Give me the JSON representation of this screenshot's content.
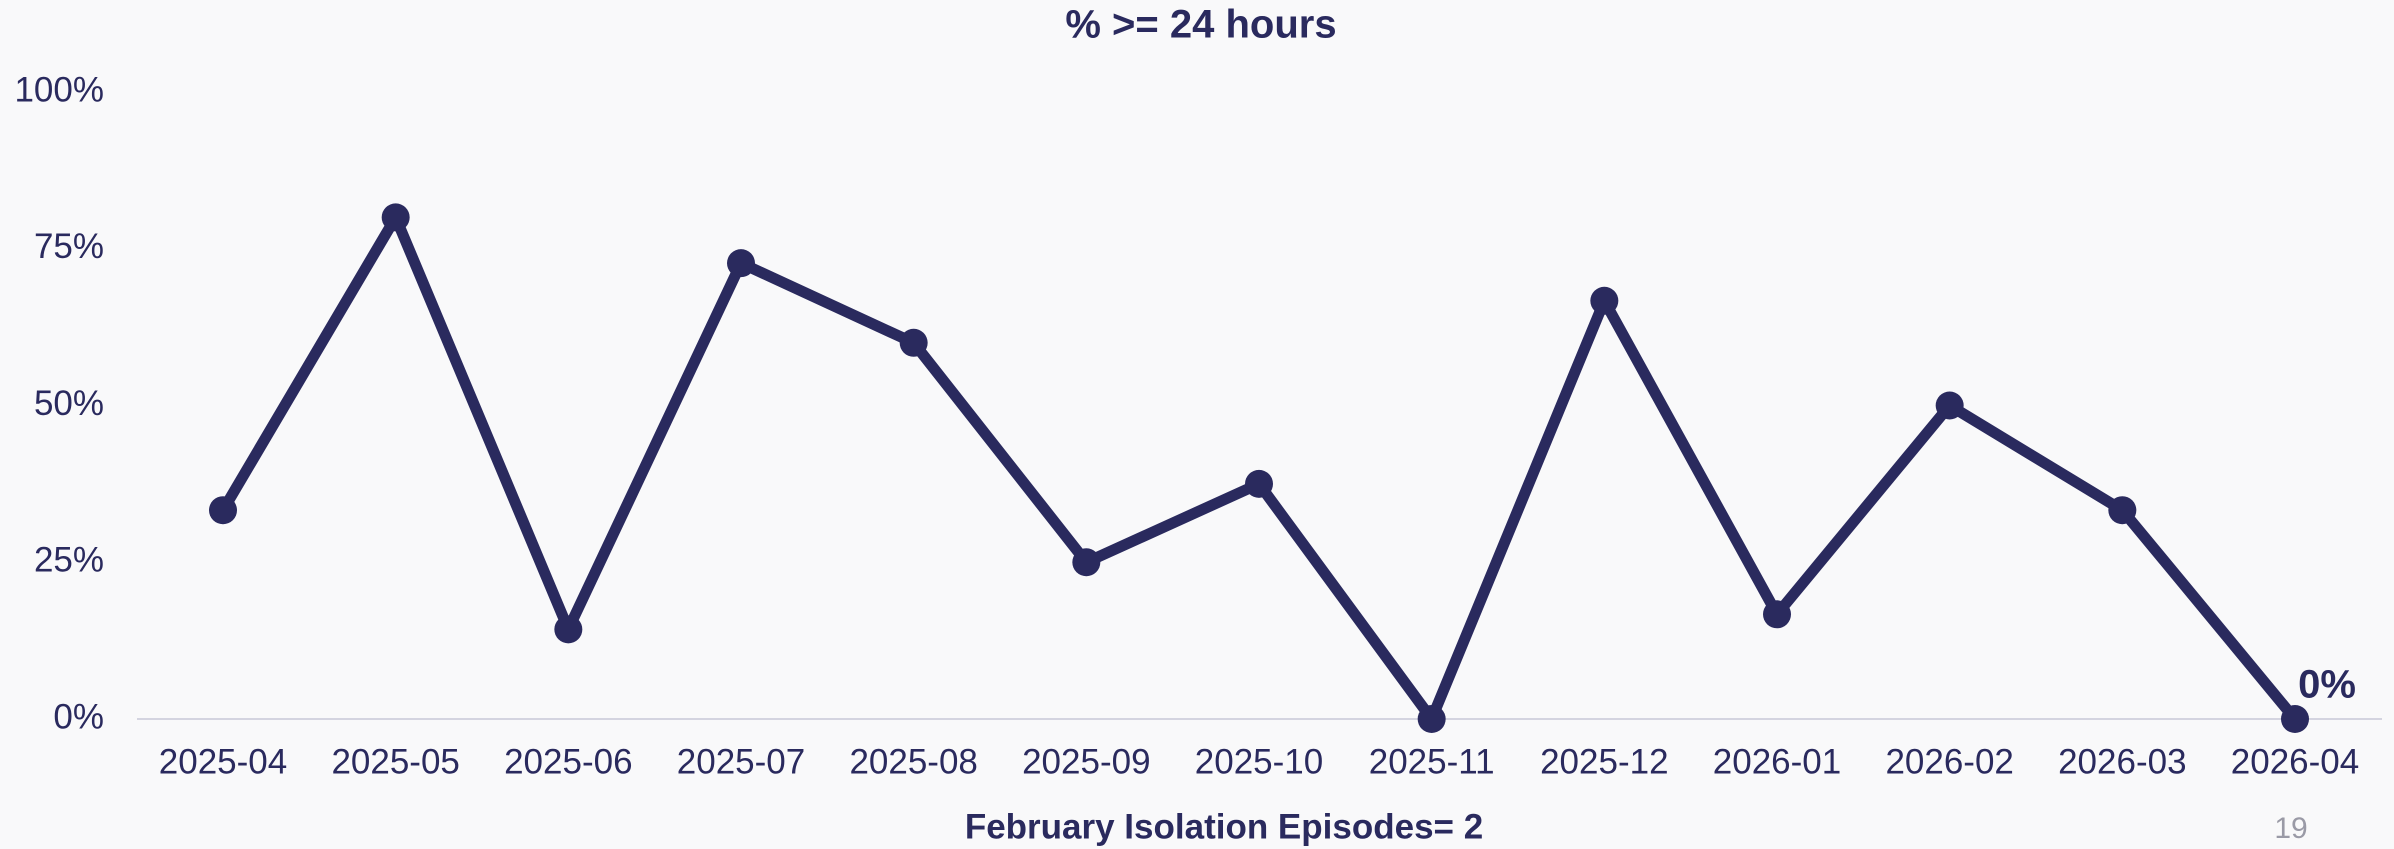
{
  "chart_data": {
    "type": "line",
    "title": "% >= 24 hours",
    "categories": [
      "2025-04",
      "2025-05",
      "2025-06",
      "2025-07",
      "2025-08",
      "2025-09",
      "2025-10",
      "2025-11",
      "2025-12",
      "2026-01",
      "2026-02",
      "2026-03",
      "2026-04"
    ],
    "values": [
      33.3,
      80,
      14.3,
      72.7,
      60,
      25,
      37.5,
      0,
      66.7,
      16.7,
      50,
      33.3,
      0
    ],
    "value_labels": [
      null,
      null,
      null,
      null,
      null,
      null,
      null,
      null,
      null,
      null,
      null,
      null,
      "0%"
    ],
    "color": "#2a2a5e",
    "ylim": [
      0,
      100
    ],
    "yticks": [
      {
        "value": 0,
        "label": "0%"
      },
      {
        "value": 25,
        "label": "25%"
      },
      {
        "value": 50,
        "label": "50%"
      },
      {
        "value": 75,
        "label": "75%"
      },
      {
        "value": 100,
        "label": "100%"
      }
    ],
    "grid": false,
    "xlabel": "February Isolation Episodes= 2",
    "annotation": "19"
  }
}
